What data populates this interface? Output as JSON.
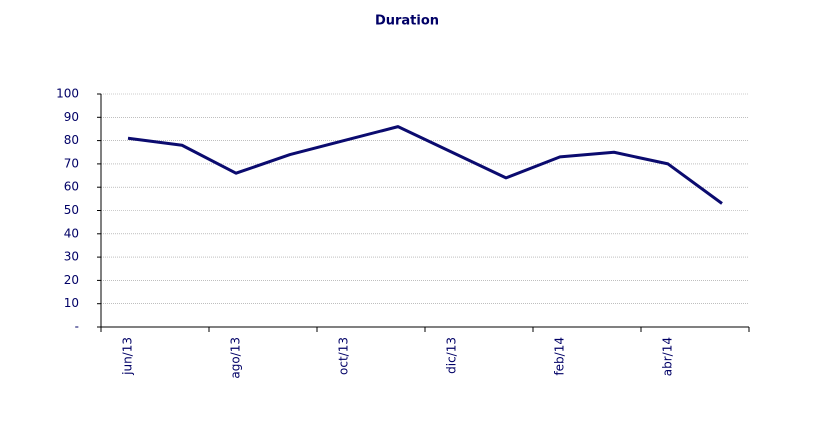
{
  "chart_data": {
    "type": "line",
    "title": "Duration",
    "categories": [
      "jun/13",
      null,
      "ago/13",
      null,
      "oct/13",
      null,
      "dic/13",
      null,
      "feb/14",
      null,
      "abr/14",
      null
    ],
    "series": [
      {
        "name": "Duration",
        "color": "#0b0b6f",
        "values": [
          81,
          78,
          66,
          74,
          80,
          86,
          75,
          64,
          73,
          75,
          70,
          53
        ]
      }
    ],
    "ylim": [
      0,
      100
    ],
    "yticks": [
      {
        "value": 0,
        "label": "-"
      },
      10,
      20,
      30,
      40,
      50,
      60,
      70,
      80,
      90,
      100
    ],
    "grid": true
  }
}
